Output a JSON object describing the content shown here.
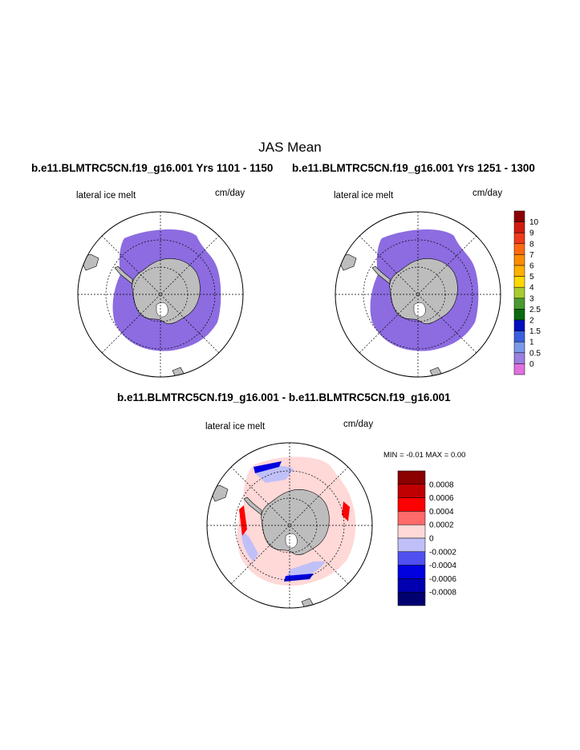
{
  "page_title": "JAS Mean",
  "panels": {
    "top_left": {
      "case": "b.e11.BLMTRC5CN.f19_g16.001  Yrs 1101 - 1150",
      "variable": "lateral ice melt",
      "units": "cm/day"
    },
    "top_right": {
      "case": "b.e11.BLMTRC5CN.f19_g16.001  Yrs 1251 - 1300",
      "variable": "lateral ice melt",
      "units": "cm/day"
    },
    "diff": {
      "case": "b.e11.BLMTRC5CN.f19_g16.001 - b.e11.BLMTRC5CN.f19_g16.001",
      "variable": "lateral ice melt",
      "units": "cm/day",
      "minmax": "MIN =  -0.01 MAX =    0.00"
    }
  },
  "colors": {
    "ice_melt_fill": "#8c6ce0",
    "land": "#bdbdbd",
    "ocean": "#ffffff"
  },
  "chart_data": [
    {
      "type": "heatmap",
      "title": "lateral ice melt",
      "subtitle": "b.e11.BLMTRC5CN.f19_g16.001  Yrs 1101 - 1150",
      "units": "cm/day",
      "projection": "south polar stereographic",
      "dominant_value": 0.5
    },
    {
      "type": "heatmap",
      "title": "lateral ice melt",
      "subtitle": "b.e11.BLMTRC5CN.f19_g16.001  Yrs 1251 - 1300",
      "units": "cm/day",
      "projection": "south polar stereographic",
      "dominant_value": 0.5
    },
    {
      "type": "heatmap",
      "title": "lateral ice melt",
      "subtitle": "b.e11.BLMTRC5CN.f19_g16.001 - b.e11.BLMTRC5CN.f19_g16.001",
      "units": "cm/day",
      "projection": "south polar stereographic",
      "min": -0.01,
      "max": 0.0
    }
  ],
  "colorbar_main": {
    "labels": [
      "10",
      "9",
      "8",
      "7",
      "6",
      "5",
      "4",
      "3",
      "2.5",
      "2",
      "1.5",
      "1",
      "0.5",
      "0"
    ],
    "colors": [
      "#8b0000",
      "#d01c10",
      "#ee3a1a",
      "#ff6a10",
      "#ff8c00",
      "#ffb000",
      "#ffd800",
      "#a8cc30",
      "#4a9a30",
      "#0a6a10",
      "#0010c0",
      "#3a60e0",
      "#7a9ae8",
      "#9a80e0",
      "#e070e0"
    ]
  },
  "colorbar_diff": {
    "labels": [
      "0.0008",
      "0.0006",
      "0.0004",
      "0.0002",
      "0",
      "-0.0002",
      "-0.0004",
      "-0.0006",
      "-0.0008"
    ],
    "colors": [
      "#8b0000",
      "#c00000",
      "#ff0000",
      "#ff6a6a",
      "#ffd8d8",
      "#c0c0f8",
      "#5050f0",
      "#0000e0",
      "#0000b0",
      "#000070"
    ]
  }
}
